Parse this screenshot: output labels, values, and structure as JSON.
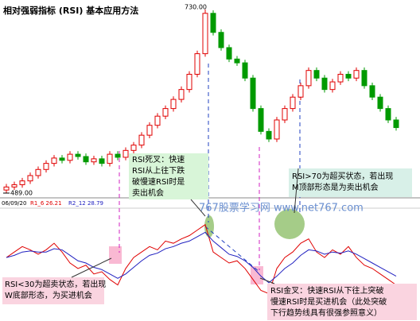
{
  "chart_data": [
    {
      "type": "candlestick",
      "title": "相对强弱指标 (RSI) 基本应用方法",
      "max_label": "730.00",
      "min_label": "489.00",
      "ylim": [
        489,
        730
      ],
      "up_color": "#e00000",
      "down_color": "#009a00",
      "open": [
        493,
        497,
        500,
        505,
        512,
        520,
        528,
        535,
        532,
        540,
        537,
        530,
        534,
        528,
        540,
        536,
        545,
        552,
        565,
        578,
        590,
        600,
        612,
        625,
        645,
        672,
        725,
        700,
        680,
        665,
        660,
        640,
        600,
        570,
        560,
        585,
        600,
        615,
        630,
        650,
        640,
        625,
        635,
        645,
        640,
        650,
        630,
        615,
        600,
        585
      ],
      "close": [
        497,
        500,
        505,
        512,
        520,
        528,
        535,
        532,
        540,
        537,
        530,
        534,
        528,
        540,
        536,
        545,
        552,
        565,
        578,
        590,
        600,
        612,
        625,
        645,
        672,
        725,
        700,
        680,
        665,
        660,
        640,
        600,
        570,
        560,
        585,
        600,
        615,
        630,
        650,
        640,
        625,
        635,
        645,
        640,
        650,
        630,
        615,
        600,
        585,
        575
      ],
      "high": [
        501,
        504,
        509,
        516,
        524,
        532,
        539,
        539,
        544,
        544,
        541,
        538,
        538,
        544,
        544,
        549,
        556,
        569,
        582,
        594,
        604,
        616,
        629,
        649,
        676,
        730,
        729,
        704,
        684,
        669,
        664,
        644,
        604,
        574,
        589,
        604,
        619,
        634,
        654,
        654,
        644,
        639,
        649,
        649,
        654,
        654,
        634,
        619,
        604,
        589
      ],
      "low": [
        489,
        493,
        496,
        501,
        508,
        516,
        524,
        528,
        528,
        533,
        526,
        526,
        524,
        524,
        532,
        532,
        541,
        548,
        561,
        574,
        586,
        596,
        608,
        621,
        641,
        668,
        696,
        676,
        661,
        656,
        636,
        596,
        566,
        556,
        556,
        581,
        596,
        611,
        626,
        636,
        621,
        621,
        631,
        636,
        636,
        626,
        611,
        596,
        581,
        571
      ]
    },
    {
      "type": "line",
      "header": [
        "06/09/20",
        "R1_6 26.21",
        "R2_12 28.79"
      ],
      "ylim": [
        0,
        100
      ],
      "series": [
        {
          "name": "R1_6",
          "color": "#e00000",
          "values": [
            55,
            60,
            65,
            62,
            58,
            62,
            68,
            60,
            50,
            45,
            48,
            40,
            42,
            35,
            30,
            45,
            55,
            60,
            65,
            62,
            70,
            68,
            72,
            75,
            80,
            85,
            60,
            55,
            50,
            52,
            45,
            35,
            25,
            22,
            45,
            55,
            60,
            68,
            72,
            60,
            55,
            62,
            58,
            65,
            55,
            48,
            45,
            40,
            35,
            30
          ]
        },
        {
          "name": "R2_12",
          "color": "#2020c0",
          "values": [
            55,
            57,
            60,
            61,
            60,
            60,
            63,
            62,
            57,
            52,
            50,
            46,
            44,
            40,
            36,
            40,
            46,
            52,
            57,
            59,
            63,
            65,
            68,
            70,
            74,
            78,
            70,
            64,
            58,
            56,
            52,
            46,
            38,
            32,
            38,
            45,
            50,
            57,
            62,
            61,
            58,
            60,
            59,
            61,
            58,
            54,
            50,
            46,
            42,
            38
          ]
        }
      ]
    }
  ],
  "watermark": "767股票学习网 www.net767.com",
  "annotations": [
    [
      "RSI死叉：快速",
      "RSI从上往下跌",
      "破慢速RSI时是",
      "卖出机会"
    ],
    [
      "RSI>70为超买状态，若出现",
      "M顶部形态是为卖出机会"
    ],
    [
      "RSI<30为超卖状态，若出现",
      "W底部形态，为买进机会"
    ],
    [
      "RSI金叉：快速RSI从下往上突破",
      "慢速RSI时是买进机会（此处突破",
      "下行趋势线具有很强参照意义）"
    ]
  ]
}
